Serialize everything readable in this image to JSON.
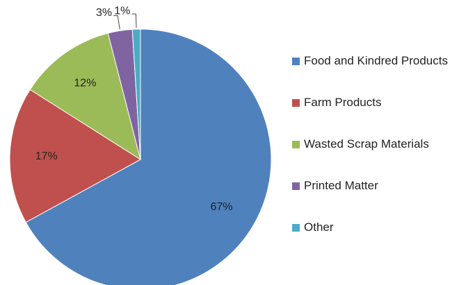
{
  "chart_data": {
    "type": "pie",
    "categories": [
      "Food and Kindred Products",
      "Farm Products",
      "Wasted Scrap Materials",
      "Printed Matter",
      "Other"
    ],
    "values": [
      67,
      17,
      12,
      3,
      1
    ],
    "value_labels": [
      "67%",
      "17%",
      "12%",
      "3%",
      "1%"
    ],
    "colors": [
      "#4f81bd",
      "#c0504d",
      "#9bbb59",
      "#8064a2",
      "#4bacc6"
    ],
    "legend": "right"
  }
}
